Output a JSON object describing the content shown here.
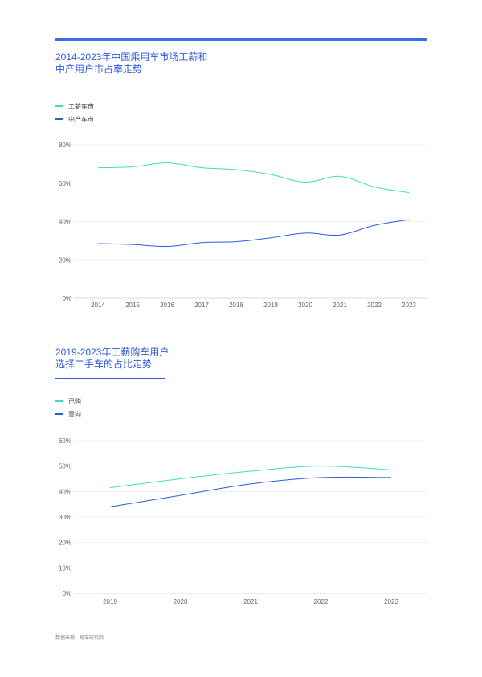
{
  "source": "数据来源：易车研究院",
  "colors": {
    "accent": "#3b6cf0",
    "teal": "#3fdbc0",
    "blue": "#2f5bdc"
  },
  "chart_data": [
    {
      "type": "line",
      "title_line1": "2014-2023年中国乘用车市场工薪和",
      "title_line2": "中产用户市占率走势",
      "categories": [
        "2014",
        "2015",
        "2016",
        "2017",
        "2018",
        "2019",
        "2020",
        "2021",
        "2022",
        "2023"
      ],
      "series": [
        {
          "name": "工薪车市",
          "color": "#3fdbc0",
          "values": [
            68,
            68.5,
            70.5,
            68,
            67,
            64.5,
            60.5,
            63.5,
            58,
            55
          ]
        },
        {
          "name": "中产车市",
          "color": "#2f5bdc",
          "values": [
            28.5,
            28,
            27,
            29,
            29.5,
            31.5,
            34,
            33,
            38,
            41
          ]
        }
      ],
      "y_ticks": [
        "0%",
        "20%",
        "40%",
        "60%",
        "80%"
      ],
      "ylim": [
        0,
        80
      ],
      "legend_position": "top-left",
      "grid": true
    },
    {
      "type": "line",
      "title_line1": "2019-2023年工薪购车用户",
      "title_line2": "选择二手车的占比走势",
      "categories": [
        "2019",
        "2020",
        "2021",
        "2022",
        "2023"
      ],
      "series": [
        {
          "name": "已购",
          "color": "#3fdbc0",
          "values": [
            41.5,
            45,
            48,
            50,
            48.5
          ]
        },
        {
          "name": "意向",
          "color": "#2f5bdc",
          "values": [
            34,
            38.5,
            43,
            45.5,
            45.5
          ]
        }
      ],
      "y_ticks": [
        "0%",
        "10%",
        "20%",
        "30%",
        "40%",
        "50%",
        "60%"
      ],
      "ylim": [
        0,
        60
      ],
      "legend_position": "top-left",
      "grid": true
    }
  ]
}
